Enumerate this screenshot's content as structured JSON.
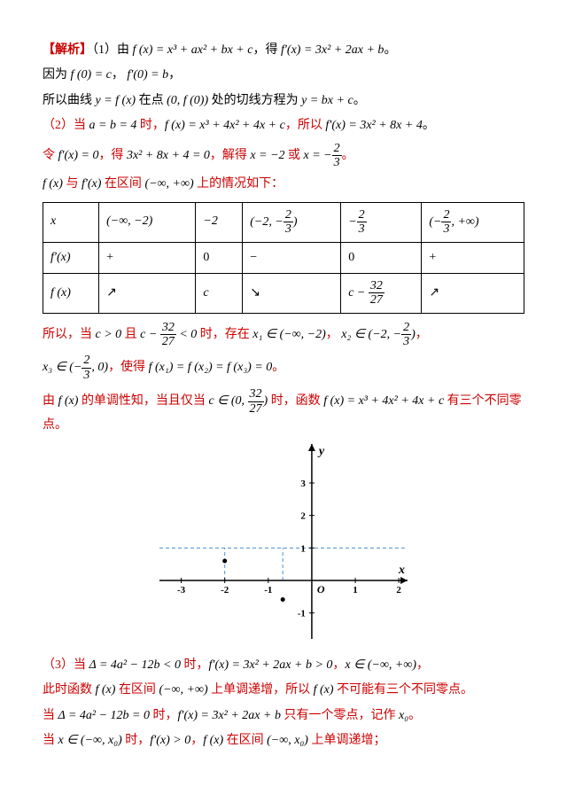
{
  "line1": {
    "pre": "【解析】",
    "num": "（1）",
    "t1": "由 ",
    "eq1": "f (x) = x³ + ax² + bx + c",
    "t2": "，得 ",
    "eq2": "f′(x) = 3x² + 2ax + b",
    "end": "。"
  },
  "line2": {
    "t1": "因为 ",
    "eq1": "f (0) = c",
    "t2": "， ",
    "eq2": "f′(0) = b",
    "end": "，"
  },
  "line3": {
    "t1": "所以曲线 ",
    "eq1": "y = f (x)",
    "t2": " 在点 ",
    "eq2": "(0, f (0))",
    "t3": " 处的切线方程为 ",
    "eq3": "y = bx + c",
    "end": "。"
  },
  "line4": {
    "num": "（2）",
    "t1": "当 ",
    "eq1": "a = b = 4",
    "t2": " 时，",
    "eq2": "f (x) = x³ + 4x² + 4x + c",
    "t3": "，所以 ",
    "eq3": "f′(x) = 3x² + 8x + 4",
    "end": "。"
  },
  "line5": {
    "t1": "令 ",
    "eq1": "f′(x) = 0",
    "t2": "，得 ",
    "eq2": "3x² + 8x + 4 = 0",
    "t3": "，解得 ",
    "eq3": "x = −2",
    "t4": " 或",
    "eq4a": "x = −",
    "frac_n": "2",
    "frac_d": "3",
    "end": "。"
  },
  "line6": {
    "eq1": "f (x)",
    "t1": " 与 ",
    "eq2": "f′(x)",
    "t2": " 在区间 ",
    "eq3": "(−∞, +∞)",
    "t3": " 上的情况如下："
  },
  "table": {
    "r1": [
      "x",
      "(−∞, −2)",
      "−2",
      "(−2, −2/3)",
      "−2/3",
      "(−2/3, +∞)"
    ],
    "r1_fracs": {
      "c4_n": "2",
      "c4_d": "3",
      "c5_n": "2",
      "c5_d": "3",
      "c6_n": "2",
      "c6_d": "3"
    },
    "r2": [
      "f′(x)",
      "+",
      "0",
      "−",
      "0",
      "+"
    ],
    "r3": {
      "c1": "f (x)",
      "c2": "↗",
      "c3": "c",
      "c4": "↘",
      "c5_pre": "c − ",
      "c5_n": "32",
      "c5_d": "27",
      "c6": "↗"
    }
  },
  "line7": {
    "t1": "所以，当 ",
    "eq1": "c > 0",
    "t2": " 且",
    "eq2_pre": "c − ",
    "eq2_n": "32",
    "eq2_d": "27",
    "eq2_post": " < 0",
    "t3": "时，存在 ",
    "eq3": "x₁ ∈ (−∞, −2)",
    "t4": "，",
    "eq4_pre": "x₂ ∈ (−2, −",
    "eq4_n": "2",
    "eq4_d": "3",
    "eq4_post": ")",
    "end": "，"
  },
  "line8": {
    "eq1_pre": "x₃ ∈ (−",
    "eq1_n": "2",
    "eq1_d": "3",
    "eq1_post": ", 0)",
    "t1": "，使得 ",
    "eq2": "f (x₁) = f (x₂) = f (x₃) = 0",
    "end": "。"
  },
  "line9": {
    "t1": "由 ",
    "eq1": "f (x)",
    "t2": " 的单调性知，当且仅当",
    "eq2_pre": "c ∈ (0, ",
    "eq2_n": "32",
    "eq2_d": "27",
    "eq2_post": ")",
    "t3": "时，函数 ",
    "eq3": "f (x) = x³ + 4x² + 4x + c",
    "t4": " 有三个不同零点。"
  },
  "graph": {
    "axis_color": "#000000",
    "grid_color": "#999999",
    "dash_color": "#4a90d0",
    "curve_color": "#8a3a8a",
    "curve_width": 2.5,
    "x_range": [
      -3.5,
      2.2
    ],
    "y_range": [
      -1.8,
      4.2
    ],
    "x_ticks": [
      -3,
      -2,
      -1,
      1,
      2
    ],
    "y_ticks": [
      -1,
      1,
      2,
      3
    ],
    "x_label": "x",
    "y_label": "y",
    "origin": "O",
    "dashed_y": [
      1
    ],
    "dashed_v": [
      -2,
      -0.667
    ]
  },
  "line10": {
    "num": "（3）",
    "t1": "当 ",
    "eq1": "Δ = 4a² − 12b < 0",
    "t2": " 时，",
    "eq2": "f′(x) = 3x² + 2ax + b > 0",
    "t3": "，",
    "eq3": "x ∈ (−∞, +∞)",
    "end": "，"
  },
  "line11": {
    "t1": "此时函数 ",
    "eq1": "f (x)",
    "t2": " 在区间 ",
    "eq2": "(−∞, +∞)",
    "t3": " 上单调递增，所以 ",
    "eq3": "f (x)",
    "t4": " 不可能有三个不同零点。"
  },
  "line12": {
    "t1": "当 ",
    "eq1": "Δ = 4a² − 12b = 0",
    "t2": " 时，",
    "eq2": "f′(x) = 3x² + 2ax + b",
    "t3": " 只有一个零点，记作 ",
    "eq3": "x₀",
    "end": "。"
  },
  "line13": {
    "t1": "当 ",
    "eq1": "x ∈ (−∞, x₀)",
    "t2": " 时，",
    "eq2": "f′(x) > 0",
    "t3": "，",
    "eq3": "f (x)",
    "t4": " 在区间 ",
    "eq4": "(−∞, x₀)",
    "t5": " 上单调递增；"
  }
}
